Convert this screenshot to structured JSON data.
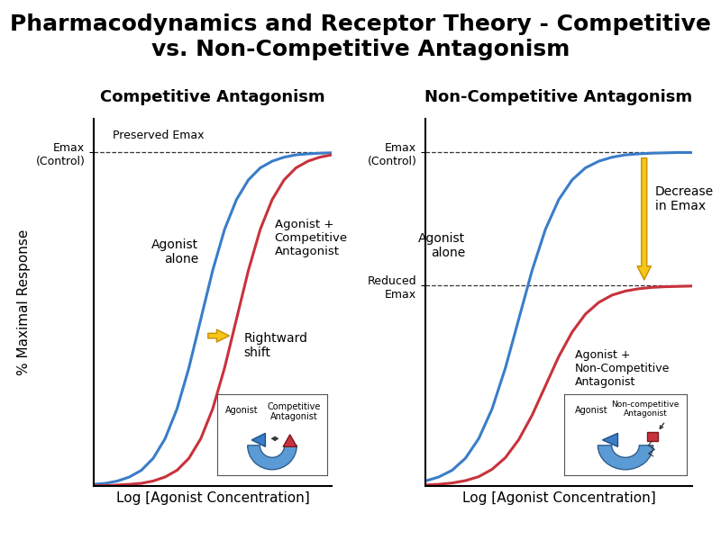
{
  "title": "Pharmacodynamics and Receptor Theory - Competitive vs. Non-Competitive Antagonism",
  "chart_data": [
    {
      "type": "line",
      "title": "Competitive Antagonism",
      "x_label": "Log [Agonist Concentration]",
      "y_label": "% Maximal Response",
      "x": [
        0,
        0.5,
        1,
        1.5,
        2,
        2.5,
        3,
        3.5,
        4,
        4.5,
        5,
        5.5,
        6,
        6.5,
        7,
        7.5,
        8,
        8.5,
        9,
        9.5,
        10
      ],
      "series": [
        {
          "name": "Agonist\nalone",
          "color": "#3a7dc9",
          "values": [
            0.5,
            0.8,
            1.5,
            2.7,
            4.7,
            8.3,
            14.2,
            23.1,
            35.4,
            50,
            64.6,
            76.9,
            85.8,
            91.7,
            95.3,
            97.3,
            98.5,
            99.2,
            99.5,
            99.7,
            99.8
          ]
        },
        {
          "name": "Agonist +\nCompetitive\nAntagonist",
          "color": "#c8323c",
          "values": [
            0.1,
            0.1,
            0.3,
            0.5,
            0.8,
            1.5,
            2.7,
            4.7,
            8.3,
            14.2,
            23.1,
            35.4,
            50,
            64.6,
            76.9,
            85.8,
            91.7,
            95.3,
            97.3,
            98.5,
            99.2
          ]
        }
      ],
      "xlim": [
        0,
        10
      ],
      "ylim": [
        0,
        110
      ],
      "xticks": [],
      "yticks": [
        {
          "value": 100,
          "label": "Emax\n(Control)"
        }
      ],
      "grid": true,
      "tick_labels": "y",
      "annotations": [
        "Preserved Emax",
        "Rightward\nshift"
      ],
      "inset_labels": [
        "Agonist",
        "Competitive\nAntagonist"
      ]
    },
    {
      "type": "line",
      "title": "Non-Competitive Antagonism",
      "x_label": "Log [Agonist Concentration]",
      "x": [
        0,
        0.5,
        1,
        1.5,
        2,
        2.5,
        3,
        3.5,
        4,
        4.5,
        5,
        5.5,
        6,
        6.5,
        7,
        7.5,
        8,
        8.5,
        9,
        9.5,
        10
      ],
      "series": [
        {
          "name": "Agonist\nalone",
          "color": "#3a7dc9",
          "values": [
            1.5,
            2.7,
            4.7,
            8.3,
            14.2,
            23.1,
            35.4,
            50,
            64.6,
            76.9,
            85.8,
            91.7,
            95.3,
            97.3,
            98.5,
            99.2,
            99.5,
            99.7,
            99.8,
            99.9,
            99.9
          ]
        },
        {
          "name": "Agonist +\nNon-Competitive\nAntagonist",
          "color": "#c8323c",
          "values": [
            0.3,
            0.5,
            0.9,
            1.6,
            2.8,
            5.0,
            8.5,
            13.9,
            21.2,
            30,
            38.8,
            46.1,
            51.5,
            55.0,
            57.2,
            58.4,
            59.1,
            59.5,
            59.7,
            59.8,
            59.9
          ]
        }
      ],
      "xlim": [
        0,
        10
      ],
      "ylim": [
        0,
        110
      ],
      "xticks": [],
      "yticks": [
        {
          "value": 100,
          "label": "Emax\n(Control)"
        },
        {
          "value": 60,
          "label": "Reduced\nEmax"
        }
      ],
      "grid": true,
      "tick_labels": "y",
      "annotations": [
        "Decrease\nin Emax"
      ],
      "inset_labels": [
        "Agonist",
        "Non-competitive\nAntagonist"
      ]
    }
  ]
}
